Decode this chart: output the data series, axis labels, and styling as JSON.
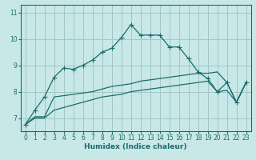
{
  "xlabel": "Humidex (Indice chaleur)",
  "background_color": "#c8e8e8",
  "grid_color": "#a0c8c8",
  "line_color": "#1a6b6b",
  "xlim": [
    -0.5,
    23.5
  ],
  "ylim": [
    6.5,
    11.3
  ],
  "xticks": [
    0,
    1,
    2,
    3,
    4,
    5,
    6,
    7,
    8,
    9,
    10,
    11,
    12,
    13,
    14,
    15,
    16,
    17,
    18,
    19,
    20,
    21,
    22,
    23
  ],
  "yticks": [
    7,
    8,
    9,
    10,
    11
  ],
  "series": [
    {
      "x": [
        0,
        1,
        2,
        3,
        4,
        5,
        6,
        7,
        8,
        9,
        10,
        11,
        12,
        13,
        14,
        15,
        16,
        17,
        18,
        19,
        20,
        21,
        22,
        23
      ],
      "y": [
        6.75,
        7.3,
        7.8,
        8.55,
        8.9,
        8.85,
        9.0,
        9.2,
        9.5,
        9.65,
        10.05,
        10.55,
        10.15,
        10.15,
        10.15,
        9.7,
        9.7,
        9.25,
        8.75,
        8.5,
        8.0,
        8.35,
        7.6,
        8.35
      ],
      "marker": true
    },
    {
      "x": [
        0,
        1,
        2,
        3,
        4,
        5,
        6,
        7,
        8,
        9,
        10,
        11,
        12,
        13,
        14,
        15,
        16,
        17,
        18,
        19,
        20,
        21,
        22,
        23
      ],
      "y": [
        6.75,
        7.05,
        7.05,
        7.8,
        7.85,
        7.9,
        7.95,
        8.0,
        8.1,
        8.2,
        8.25,
        8.3,
        8.4,
        8.45,
        8.5,
        8.55,
        8.6,
        8.65,
        8.7,
        8.7,
        8.75,
        8.35,
        7.6,
        8.35
      ],
      "marker": false
    },
    {
      "x": [
        0,
        1,
        2,
        3,
        4,
        5,
        6,
        7,
        8,
        9,
        10,
        11,
        12,
        13,
        14,
        15,
        16,
        17,
        18,
        19,
        20,
        21,
        22,
        23
      ],
      "y": [
        6.75,
        7.0,
        7.0,
        7.3,
        7.4,
        7.5,
        7.6,
        7.7,
        7.8,
        7.85,
        7.9,
        8.0,
        8.05,
        8.1,
        8.15,
        8.2,
        8.25,
        8.3,
        8.35,
        8.4,
        8.0,
        8.05,
        7.6,
        8.35
      ],
      "marker": false
    }
  ]
}
